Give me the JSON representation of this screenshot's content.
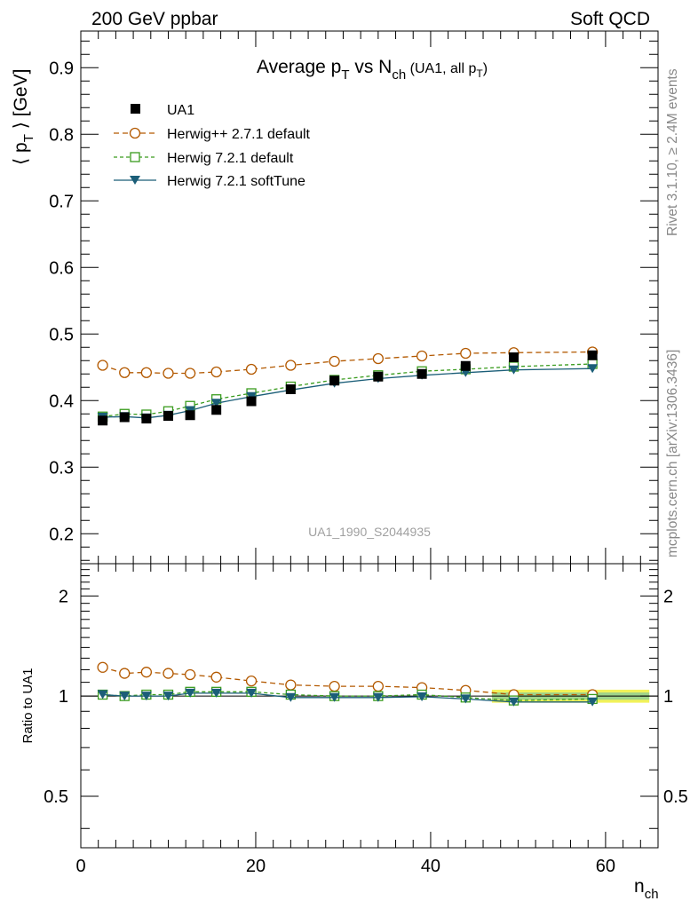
{
  "header": {
    "left": "200 GeV ppbar",
    "right": "Soft QCD"
  },
  "side_labels": {
    "rivet": "Rivet 3.1.10, ≥ 2.4M events",
    "mcplots": "mcplots.cern.ch [arXiv:1306.3436]"
  },
  "chart_data": [
    {
      "type": "scatter",
      "title": {
        "main": "Average p",
        "sub1": "T",
        "mid": " vs N",
        "sub2": "ch",
        "tail": " (UA1, all p",
        "sub3": "T",
        "end": ")"
      },
      "ylabel": {
        "open": "⟨ p",
        "sub": "T",
        "close": " ⟩ [GeV]"
      },
      "xlabel": {
        "main": "n",
        "sub": "ch"
      },
      "watermark": "UA1_1990_S2044935",
      "xlim": [
        0,
        66
      ],
      "ylim": [
        0.155,
        0.955
      ],
      "yticks": [
        0.2,
        0.3,
        0.4,
        0.5,
        0.6,
        0.7,
        0.8,
        0.9
      ],
      "yticklabels": [
        "0.2",
        "0.3",
        "0.4",
        "0.5",
        "0.6",
        "0.7",
        "0.8",
        "0.9"
      ],
      "legend_position": "top-left",
      "series": [
        {
          "name": "UA1",
          "color": "#000000",
          "marker": "filled-square",
          "x": [
            2.5,
            5,
            7.5,
            10,
            12.5,
            15.5,
            19.5,
            24,
            29,
            34,
            39,
            44,
            49.5,
            58.5
          ],
          "y": [
            0.37,
            0.375,
            0.373,
            0.377,
            0.378,
            0.386,
            0.399,
            0.417,
            0.43,
            0.436,
            0.44,
            0.452,
            0.465,
            0.468
          ]
        },
        {
          "name": "Herwig++ 2.7.1 default",
          "color": "#b35900",
          "marker": "open-circle",
          "dash": "6,4",
          "x": [
            2.5,
            5,
            7.5,
            10,
            12.5,
            15.5,
            19.5,
            24,
            29,
            34,
            39,
            44,
            49.5,
            58.5
          ],
          "y": [
            0.453,
            0.442,
            0.442,
            0.441,
            0.441,
            0.443,
            0.447,
            0.453,
            0.459,
            0.463,
            0.467,
            0.471,
            0.472,
            0.473
          ]
        },
        {
          "name": "Herwig 7.2.1 default",
          "color": "#3a9c1e",
          "marker": "open-square",
          "dash": "4,3",
          "x": [
            2.5,
            5,
            7.5,
            10,
            12.5,
            15.5,
            19.5,
            24,
            29,
            34,
            39,
            44,
            49.5,
            58.5
          ],
          "y": [
            0.376,
            0.38,
            0.379,
            0.384,
            0.392,
            0.402,
            0.411,
            0.421,
            0.431,
            0.438,
            0.444,
            0.447,
            0.451,
            0.455
          ]
        },
        {
          "name": "Herwig 7.2.1 softTune",
          "color": "#1b5e78",
          "marker": "filled-triangle-down",
          "x": [
            2.5,
            5,
            7.5,
            10,
            12.5,
            15.5,
            19.5,
            24,
            29,
            34,
            39,
            44,
            49.5,
            58.5
          ],
          "y": [
            0.375,
            0.376,
            0.374,
            0.378,
            0.385,
            0.396,
            0.406,
            0.416,
            0.426,
            0.433,
            0.438,
            0.442,
            0.446,
            0.448
          ]
        }
      ]
    },
    {
      "type": "scatter",
      "ylabel": "Ratio to UA1",
      "xlim": [
        0,
        66
      ],
      "ylim": [
        0.35,
        2.5
      ],
      "log_y": true,
      "yticks": [
        0.5,
        1,
        2
      ],
      "yticklabels": [
        "0.5",
        "1",
        "2"
      ],
      "xticks": [
        0,
        20,
        40,
        60
      ],
      "xticklabels": [
        "0",
        "20",
        "40",
        "60"
      ],
      "band_color": "#f2f25a",
      "band_inner_color": "#9fd38a",
      "series": [
        {
          "name": "Herwig++ 2.7.1 default",
          "color": "#b35900",
          "marker": "open-circle",
          "dash": "6,4",
          "x": [
            2.5,
            5,
            7.5,
            10,
            12.5,
            15.5,
            19.5,
            24,
            29,
            34,
            39,
            44,
            49.5,
            58.5
          ],
          "y": [
            1.22,
            1.17,
            1.18,
            1.17,
            1.16,
            1.14,
            1.11,
            1.08,
            1.07,
            1.07,
            1.06,
            1.04,
            1.01,
            1.01
          ]
        },
        {
          "name": "Herwig 7.2.1 default",
          "color": "#3a9c1e",
          "marker": "open-square",
          "dash": "4,3",
          "x": [
            2.5,
            5,
            7.5,
            10,
            12.5,
            15.5,
            19.5,
            24,
            29,
            34,
            39,
            44,
            49.5,
            58.5
          ],
          "y": [
            1.01,
            1.0,
            1.01,
            1.01,
            1.03,
            1.03,
            1.03,
            1.01,
            1.0,
            1.0,
            1.01,
            0.99,
            0.97,
            0.98
          ]
        },
        {
          "name": "Herwig 7.2.1 softTune",
          "color": "#1b5e78",
          "marker": "filled-triangle-down",
          "x": [
            2.5,
            5,
            7.5,
            10,
            12.5,
            15.5,
            19.5,
            24,
            29,
            34,
            39,
            44,
            49.5,
            58.5
          ],
          "y": [
            1.01,
            1.0,
            1.0,
            1.0,
            1.02,
            1.02,
            1.02,
            0.99,
            0.99,
            0.99,
            0.995,
            0.98,
            0.96,
            0.96
          ]
        }
      ]
    }
  ]
}
